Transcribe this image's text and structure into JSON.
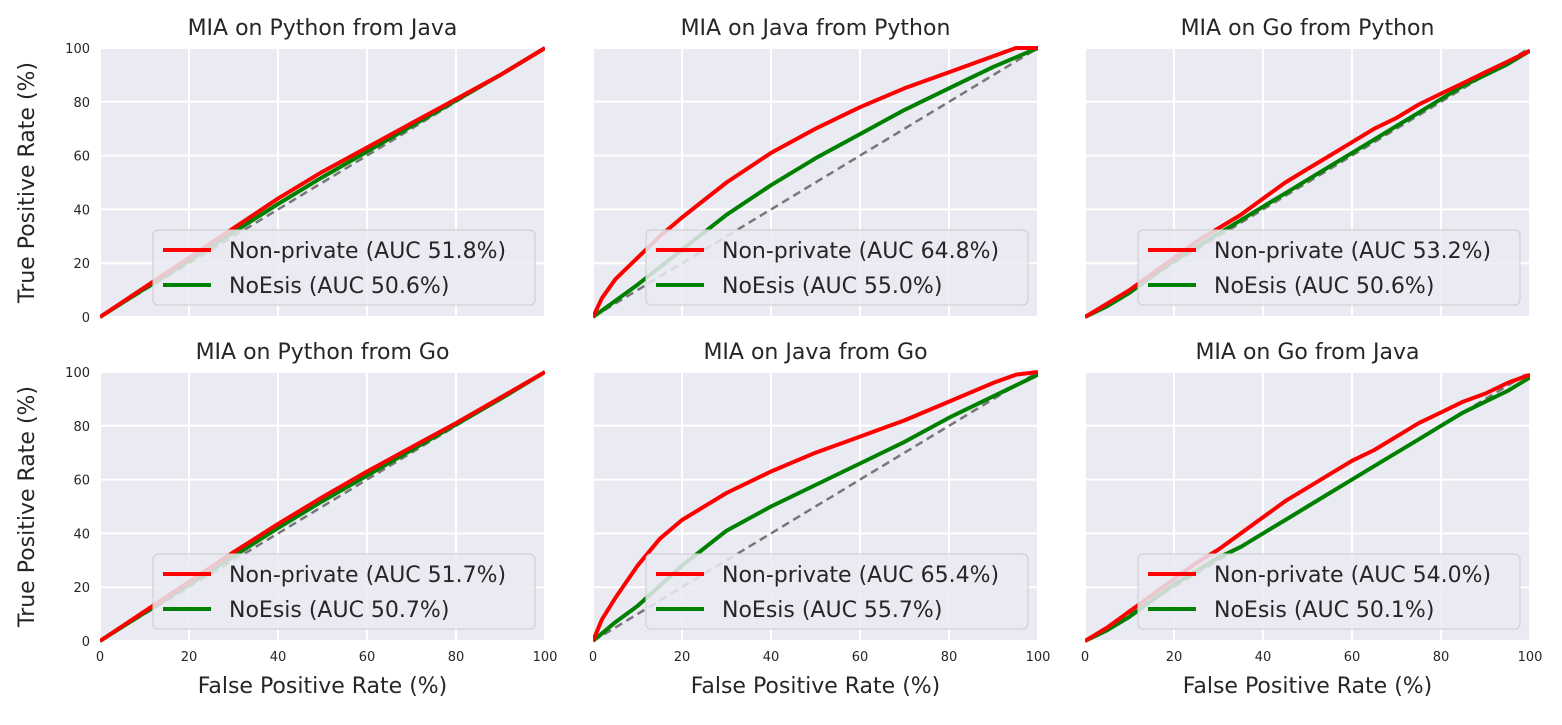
{
  "figure": {
    "ylabel": "True Positive Rate (%)",
    "xlabel": "False Positive Rate (%)"
  },
  "chart_data": [
    {
      "type": "line",
      "title": "MIA on Python from Java",
      "xlabel": "False Positive Rate (%)",
      "ylabel": "True Positive Rate (%)",
      "xlim": [
        0,
        100
      ],
      "ylim": [
        0,
        100
      ],
      "xticks": [
        0,
        20,
        40,
        60,
        80,
        100
      ],
      "yticks": [
        0,
        20,
        40,
        60,
        80,
        100
      ],
      "grid": true,
      "legend_position": "lower right",
      "series": [
        {
          "name": "Non-private (AUC 51.8%)",
          "color": "#ff0000",
          "dashed": false,
          "x": [
            0,
            10,
            20,
            30,
            40,
            50,
            60,
            70,
            80,
            90,
            100
          ],
          "y": [
            0,
            11,
            22,
            33,
            44,
            54,
            63,
            72,
            81,
            90,
            100
          ]
        },
        {
          "name": "NoEsis (AUC 50.6%)",
          "color": "#008000",
          "dashed": false,
          "x": [
            0,
            10,
            20,
            30,
            40,
            50,
            60,
            70,
            80,
            90,
            100
          ],
          "y": [
            0,
            10.5,
            21,
            31.5,
            42,
            52,
            61.5,
            71,
            80.5,
            90,
            100
          ]
        },
        {
          "name": "baseline",
          "color": "#777777",
          "dashed": true,
          "x": [
            0,
            100
          ],
          "y": [
            0,
            100
          ]
        }
      ]
    },
    {
      "type": "line",
      "title": "MIA on Java from Python",
      "xlabel": "False Positive Rate (%)",
      "ylabel": "True Positive Rate (%)",
      "xlim": [
        0,
        100
      ],
      "ylim": [
        0,
        100
      ],
      "xticks": [
        0,
        20,
        40,
        60,
        80,
        100
      ],
      "yticks": [
        0,
        20,
        40,
        60,
        80,
        100
      ],
      "grid": true,
      "legend_position": "lower right",
      "series": [
        {
          "name": "Non-private (AUC 64.8%)",
          "color": "#ff0000",
          "dashed": false,
          "x": [
            0,
            2,
            5,
            10,
            15,
            20,
            30,
            40,
            50,
            60,
            70,
            80,
            90,
            95,
            100
          ],
          "y": [
            0,
            7,
            14,
            22,
            30,
            37,
            50,
            61,
            70,
            78,
            85,
            91,
            97,
            100,
            100
          ]
        },
        {
          "name": "NoEsis (AUC 55.0%)",
          "color": "#008000",
          "dashed": false,
          "x": [
            0,
            5,
            10,
            20,
            30,
            40,
            50,
            60,
            70,
            80,
            90,
            100
          ],
          "y": [
            0,
            6,
            12,
            25,
            38,
            49,
            59,
            68,
            77,
            85,
            93,
            100
          ]
        },
        {
          "name": "baseline",
          "color": "#777777",
          "dashed": true,
          "x": [
            0,
            100
          ],
          "y": [
            0,
            100
          ]
        }
      ]
    },
    {
      "type": "line",
      "title": "MIA on Go from Python",
      "xlabel": "False Positive Rate (%)",
      "ylabel": "True Positive Rate (%)",
      "xlim": [
        0,
        100
      ],
      "ylim": [
        0,
        100
      ],
      "xticks": [
        0,
        20,
        40,
        60,
        80,
        100
      ],
      "yticks": [
        0,
        20,
        40,
        60,
        80,
        100
      ],
      "grid": true,
      "legend_position": "lower right",
      "series": [
        {
          "name": "Non-private (AUC 53.2%)",
          "color": "#ff0000",
          "dashed": false,
          "x": [
            0,
            5,
            10,
            15,
            20,
            25,
            30,
            35,
            40,
            45,
            50,
            55,
            60,
            65,
            70,
            75,
            80,
            85,
            90,
            95,
            100
          ],
          "y": [
            0,
            5,
            10,
            16,
            22,
            28,
            33,
            38,
            44,
            50,
            55,
            60,
            65,
            70,
            74,
            79,
            83,
            87,
            91,
            95,
            99
          ]
        },
        {
          "name": "NoEsis (AUC 50.6%)",
          "color": "#008000",
          "dashed": false,
          "x": [
            0,
            5,
            10,
            15,
            20,
            25,
            30,
            35,
            40,
            45,
            50,
            55,
            60,
            65,
            70,
            75,
            80,
            85,
            90,
            95,
            100
          ],
          "y": [
            0,
            4,
            9,
            15,
            21,
            26,
            31,
            36,
            41,
            46,
            51,
            56,
            61,
            66,
            71,
            76,
            81,
            86,
            90,
            94,
            99
          ]
        },
        {
          "name": "baseline",
          "color": "#777777",
          "dashed": true,
          "x": [
            0,
            100
          ],
          "y": [
            0,
            100
          ]
        }
      ]
    },
    {
      "type": "line",
      "title": "MIA on Python from Go",
      "xlabel": "False Positive Rate (%)",
      "ylabel": "True Positive Rate (%)",
      "xlim": [
        0,
        100
      ],
      "ylim": [
        0,
        100
      ],
      "xticks": [
        0,
        20,
        40,
        60,
        80,
        100
      ],
      "yticks": [
        0,
        20,
        40,
        60,
        80,
        100
      ],
      "grid": true,
      "legend_position": "lower right",
      "series": [
        {
          "name": "Non-private (AUC 51.7%)",
          "color": "#ff0000",
          "dashed": false,
          "x": [
            0,
            10,
            20,
            30,
            40,
            50,
            60,
            70,
            80,
            90,
            100
          ],
          "y": [
            0,
            11,
            22,
            33,
            43.5,
            53.5,
            63,
            72,
            81,
            90.5,
            100
          ]
        },
        {
          "name": "NoEsis (AUC 50.7%)",
          "color": "#008000",
          "dashed": false,
          "x": [
            0,
            10,
            20,
            30,
            40,
            50,
            60,
            70,
            80,
            90,
            100
          ],
          "y": [
            0,
            10.5,
            21,
            31.5,
            42,
            52,
            61.5,
            71,
            80.5,
            90,
            100
          ]
        },
        {
          "name": "baseline",
          "color": "#777777",
          "dashed": true,
          "x": [
            0,
            100
          ],
          "y": [
            0,
            100
          ]
        }
      ]
    },
    {
      "type": "line",
      "title": "MIA on Java from Go",
      "xlabel": "False Positive Rate (%)",
      "ylabel": "True Positive Rate (%)",
      "xlim": [
        0,
        100
      ],
      "ylim": [
        0,
        100
      ],
      "xticks": [
        0,
        20,
        40,
        60,
        80,
        100
      ],
      "yticks": [
        0,
        20,
        40,
        60,
        80,
        100
      ],
      "grid": true,
      "legend_position": "lower right",
      "series": [
        {
          "name": "Non-private (AUC 65.4%)",
          "color": "#ff0000",
          "dashed": false,
          "x": [
            0,
            2,
            5,
            10,
            15,
            20,
            30,
            40,
            50,
            60,
            70,
            80,
            90,
            95,
            100
          ],
          "y": [
            0,
            8,
            16,
            28,
            38,
            45,
            55,
            63,
            70,
            76,
            82,
            89,
            96,
            99,
            100
          ]
        },
        {
          "name": "NoEsis (AUC 55.7%)",
          "color": "#008000",
          "dashed": false,
          "x": [
            0,
            5,
            10,
            20,
            30,
            40,
            50,
            60,
            70,
            80,
            90,
            100
          ],
          "y": [
            0,
            7,
            13,
            28,
            41,
            50,
            58,
            66,
            74,
            83,
            91,
            99
          ]
        },
        {
          "name": "baseline",
          "color": "#777777",
          "dashed": true,
          "x": [
            0,
            100
          ],
          "y": [
            0,
            100
          ]
        }
      ]
    },
    {
      "type": "line",
      "title": "MIA on Go from Java",
      "xlabel": "False Positive Rate (%)",
      "ylabel": "True Positive Rate (%)",
      "xlim": [
        0,
        100
      ],
      "ylim": [
        0,
        100
      ],
      "xticks": [
        0,
        20,
        40,
        60,
        80,
        100
      ],
      "yticks": [
        0,
        20,
        40,
        60,
        80,
        100
      ],
      "grid": true,
      "legend_position": "lower right",
      "series": [
        {
          "name": "Non-private (AUC 54.0%)",
          "color": "#ff0000",
          "dashed": false,
          "x": [
            0,
            5,
            10,
            15,
            20,
            25,
            30,
            35,
            40,
            45,
            50,
            55,
            60,
            65,
            70,
            75,
            80,
            85,
            90,
            95,
            100
          ],
          "y": [
            0,
            5,
            11,
            17,
            23,
            29,
            34,
            40,
            46,
            52,
            57,
            62,
            67,
            71,
            76,
            81,
            85,
            89,
            92,
            96,
            99
          ]
        },
        {
          "name": "NoEsis (AUC 50.1%)",
          "color": "#008000",
          "dashed": false,
          "x": [
            0,
            5,
            10,
            15,
            20,
            25,
            30,
            35,
            40,
            45,
            50,
            55,
            60,
            65,
            70,
            75,
            80,
            85,
            90,
            95,
            100
          ],
          "y": [
            0,
            4,
            9,
            15,
            21,
            26,
            31,
            35,
            40,
            45,
            50,
            55,
            60,
            65,
            70,
            75,
            80,
            85,
            89,
            93,
            98
          ]
        },
        {
          "name": "baseline",
          "color": "#777777",
          "dashed": true,
          "x": [
            0,
            100
          ],
          "y": [
            0,
            100
          ]
        }
      ]
    }
  ]
}
